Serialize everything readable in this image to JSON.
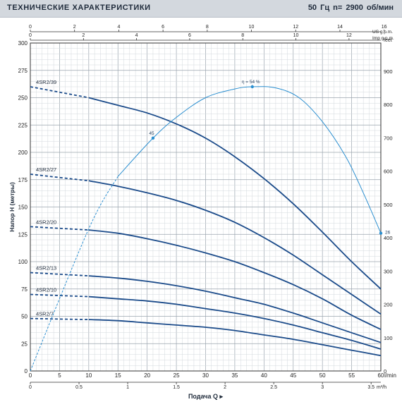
{
  "header": {
    "title": "ТЕХНИЧЕСКИЕ ХАРАКТЕРИСТИКИ",
    "freq_rpm": "50 Гц   n= 2900 об/мин"
  },
  "chart_data": {
    "type": "line",
    "title": "ТЕХНИЧЕСКИЕ ХАРАКТЕРИСТИКИ",
    "subtitle": "50 Гц   n= 2900 об/мин",
    "xlabel": "Подача Q",
    "ylabel": "Напор H (метры)",
    "x_unit": "l/min",
    "xlim": [
      0,
      60
    ],
    "ylim": [
      0,
      300
    ],
    "x_ticks": [
      0,
      5,
      10,
      15,
      20,
      25,
      30,
      35,
      40,
      45,
      50,
      55,
      60
    ],
    "y_ticks": [
      0,
      25,
      50,
      75,
      100,
      125,
      150,
      175,
      200,
      225,
      250,
      275,
      300
    ],
    "grid": true,
    "secondary_axes": {
      "us_gpm": {
        "label": "US g.p.m.",
        "ticks": [
          0,
          2,
          4,
          6,
          8,
          10,
          12,
          14,
          16
        ]
      },
      "imp_gpm": {
        "label": "Imp g.p.m.",
        "ticks": [
          0,
          2,
          4,
          6,
          8,
          10,
          12
        ]
      },
      "m3h": {
        "label": "m³/h",
        "ticks": [
          0,
          0.5,
          1,
          1.5,
          2,
          2.5,
          3,
          3.5
        ]
      },
      "feet": {
        "label": "feet",
        "ticks": [
          0,
          100,
          200,
          300,
          400,
          500,
          600,
          700,
          800,
          900,
          1000
        ]
      }
    },
    "series": [
      {
        "name": "4SR2/39",
        "dashed_to": 10,
        "x": [
          0,
          10,
          15,
          20,
          25,
          30,
          35,
          40,
          45,
          50,
          55,
          60
        ],
        "values": [
          260,
          250,
          243,
          236,
          226,
          213,
          196,
          176,
          153,
          127,
          100,
          75
        ]
      },
      {
        "name": "4SR2/27",
        "dashed_to": 10,
        "x": [
          0,
          10,
          15,
          20,
          25,
          30,
          35,
          40,
          45,
          50,
          55,
          60
        ],
        "values": [
          180,
          174,
          169,
          163,
          156,
          147,
          136,
          122,
          106,
          88,
          70,
          52
        ]
      },
      {
        "name": "4SR2/20",
        "dashed_to": 10,
        "x": [
          0,
          10,
          15,
          20,
          25,
          30,
          35,
          40,
          45,
          50,
          55,
          60
        ],
        "values": [
          132,
          129,
          126,
          121,
          115,
          108,
          100,
          90,
          79,
          66,
          51,
          38
        ]
      },
      {
        "name": "4SR2/13",
        "dashed_to": 10,
        "x": [
          0,
          10,
          15,
          20,
          25,
          30,
          35,
          40,
          45,
          50,
          55,
          60
        ],
        "values": [
          90,
          87,
          85,
          82,
          78,
          73,
          67,
          61,
          53,
          44,
          35,
          26
        ]
      },
      {
        "name": "4SR2/10",
        "dashed_to": 10,
        "x": [
          0,
          10,
          15,
          20,
          25,
          30,
          35,
          40,
          45,
          50,
          55,
          60
        ],
        "values": [
          70,
          68,
          66,
          64,
          61,
          57,
          53,
          48,
          42,
          35,
          28,
          20
        ]
      },
      {
        "name": "4SR2/7",
        "dashed_to": 10,
        "x": [
          0,
          10,
          15,
          20,
          25,
          30,
          35,
          40,
          45,
          50,
          55,
          60
        ],
        "values": [
          48,
          47,
          46,
          44,
          42,
          40,
          37,
          33,
          29,
          24,
          19,
          14
        ]
      }
    ],
    "efficiency": {
      "label": "η = 54 %",
      "x": [
        0,
        10,
        15,
        21,
        25,
        30,
        35,
        38,
        42,
        46,
        50,
        54,
        57,
        60
      ],
      "values": [
        0,
        130,
        178,
        213,
        232,
        250,
        258,
        260,
        259,
        250,
        228,
        196,
        163,
        126
      ],
      "markers": [
        {
          "x": 21,
          "y": 213,
          "label": "45"
        },
        {
          "x": 38,
          "y": 260,
          "label": "η = 54 %"
        },
        {
          "x": 60,
          "y": 126,
          "label": "26"
        }
      ]
    }
  }
}
